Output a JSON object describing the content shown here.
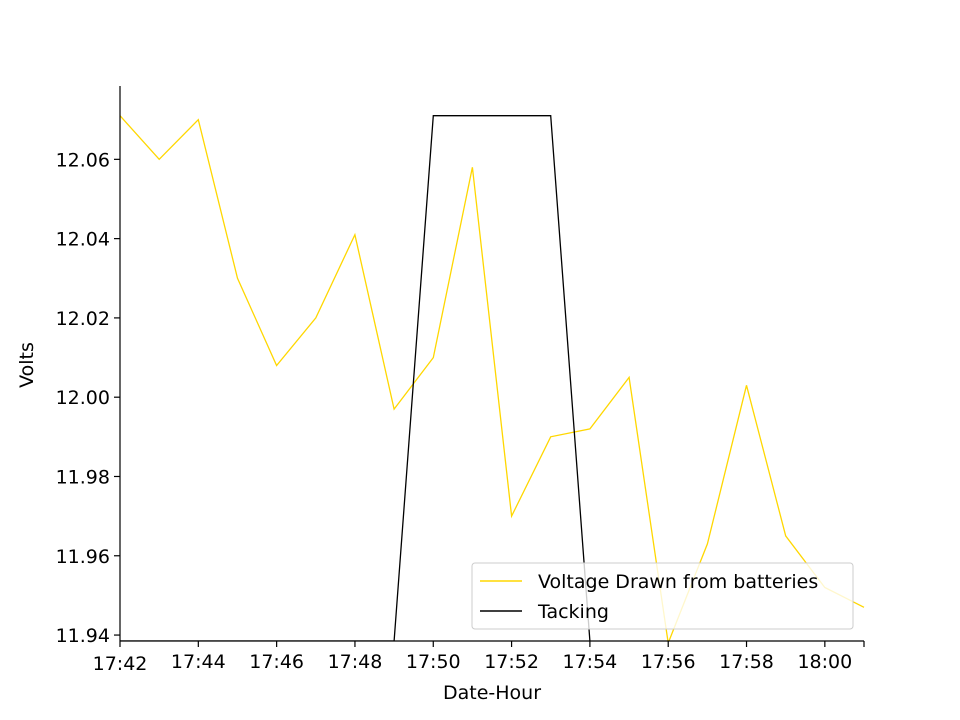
{
  "chart_data": {
    "type": "line",
    "xlabel": "Date-Hour",
    "ylabel": "Volts",
    "x_time_range": [
      "17:42",
      "18:01"
    ],
    "xticks": [
      "17:42",
      "17:44",
      "17:46",
      "17:48",
      "17:50",
      "17:52",
      "17:54",
      "17:56",
      "17:58",
      "18:00"
    ],
    "ylim": [
      11.9385,
      12.0785
    ],
    "yticks": [
      "11.94",
      "11.96",
      "11.98",
      "12.00",
      "12.02",
      "12.04",
      "12.06"
    ],
    "grid": false,
    "legend_position": "lower-right",
    "series": [
      {
        "name": "Voltage Drawn from batteries",
        "color": "#FFD700",
        "points": [
          [
            "17:42",
            12.071
          ],
          [
            "17:43",
            12.06
          ],
          [
            "17:44",
            12.07
          ],
          [
            "17:45",
            12.03
          ],
          [
            "17:46",
            12.008
          ],
          [
            "17:47",
            12.02
          ],
          [
            "17:48",
            12.041
          ],
          [
            "17:49",
            11.997
          ],
          [
            "17:50",
            12.01
          ],
          [
            "17:51",
            12.058
          ],
          [
            "17:52",
            11.97
          ],
          [
            "17:53",
            11.99
          ],
          [
            "17:54",
            11.992
          ],
          [
            "17:55",
            12.005
          ],
          [
            "17:56",
            11.938
          ],
          [
            "17:57",
            11.963
          ],
          [
            "17:58",
            12.003
          ],
          [
            "17:59",
            11.965
          ],
          [
            "18:00",
            11.952
          ],
          [
            "18:01",
            11.947
          ]
        ]
      },
      {
        "name": "Tacking",
        "color": "#000000",
        "points": [
          [
            "17:42",
            11.9385
          ],
          [
            "17:49",
            11.9385
          ],
          [
            "17:50",
            12.071
          ],
          [
            "17:53",
            12.071
          ],
          [
            "17:54",
            11.9385
          ]
        ]
      }
    ]
  }
}
